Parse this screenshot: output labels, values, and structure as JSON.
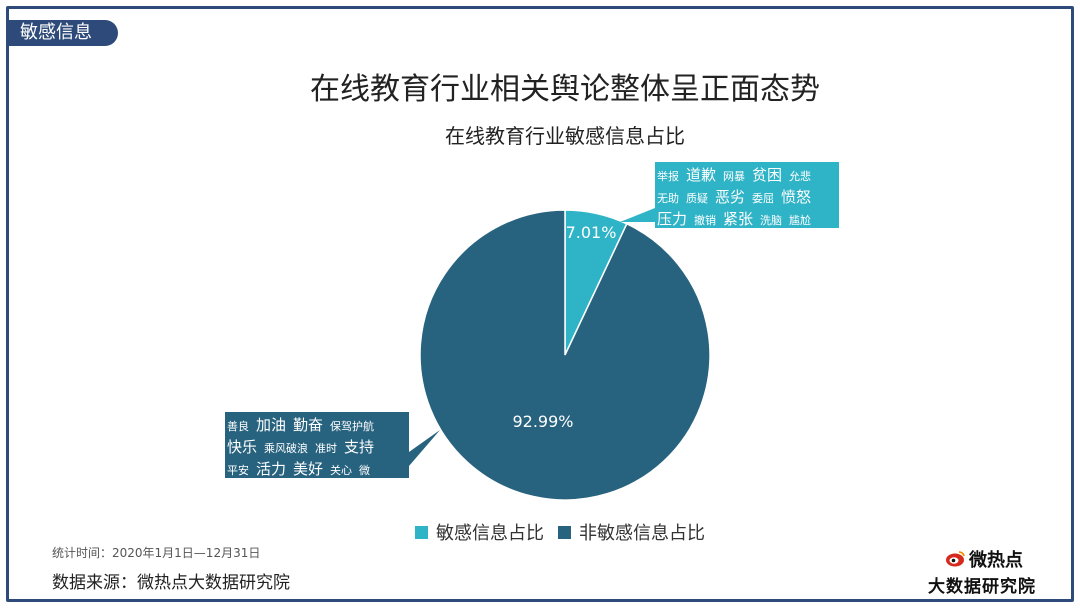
{
  "section_tag": "敏感信息",
  "main_title": "在线教育行业相关舆论整体呈正面态势",
  "chart_data": {
    "type": "pie",
    "title": "在线教育行业敏感信息占比",
    "series": [
      {
        "name": "敏感信息占比",
        "value": 7.01,
        "label": "7.01%",
        "color": "#2fb3c6"
      },
      {
        "name": "非敏感信息占比",
        "value": 92.99,
        "label": "92.99%",
        "color": "#27627f"
      }
    ],
    "legend_position": "bottom"
  },
  "sensitive_words": [
    [
      {
        "t": "举报",
        "s": "s"
      },
      {
        "t": "道歉",
        "s": "l"
      },
      {
        "t": "网暴",
        "s": "s"
      },
      {
        "t": "贫困",
        "s": "l"
      },
      {
        "t": "允悲",
        "s": "s"
      }
    ],
    [
      {
        "t": "无助",
        "s": "s"
      },
      {
        "t": "质疑",
        "s": "s"
      },
      {
        "t": "恶劣",
        "s": "l"
      },
      {
        "t": "委屈",
        "s": "s"
      },
      {
        "t": "愤怒",
        "s": "l"
      }
    ],
    [
      {
        "t": "压力",
        "s": "l"
      },
      {
        "t": "撤销",
        "s": "s"
      },
      {
        "t": "紧张",
        "s": "l"
      },
      {
        "t": "洗脑",
        "s": "s"
      },
      {
        "t": "尴尬",
        "s": "s"
      }
    ]
  ],
  "nonsensitive_words": [
    [
      {
        "t": "善良",
        "s": "s"
      },
      {
        "t": "加油",
        "s": "l"
      },
      {
        "t": "勤奋",
        "s": "l"
      },
      {
        "t": "保驾护航",
        "s": "s"
      }
    ],
    [
      {
        "t": "快乐",
        "s": "l"
      },
      {
        "t": "乘风破浪",
        "s": "s"
      },
      {
        "t": "准时",
        "s": "s"
      },
      {
        "t": "支持",
        "s": "l"
      }
    ],
    [
      {
        "t": "平安",
        "s": "s"
      },
      {
        "t": "活力",
        "s": "l"
      },
      {
        "t": "美好",
        "s": "l"
      },
      {
        "t": "关心",
        "s": "s"
      },
      {
        "t": "微",
        "s": "s"
      }
    ]
  ],
  "footer": {
    "time_range": "统计时间：2020年1月1日—12月31日",
    "source": "数据来源：微热点大数据研究院"
  },
  "logo": {
    "line1": "微热点",
    "line2": "大数据研究院",
    "icon": "weibo-eye-icon"
  }
}
